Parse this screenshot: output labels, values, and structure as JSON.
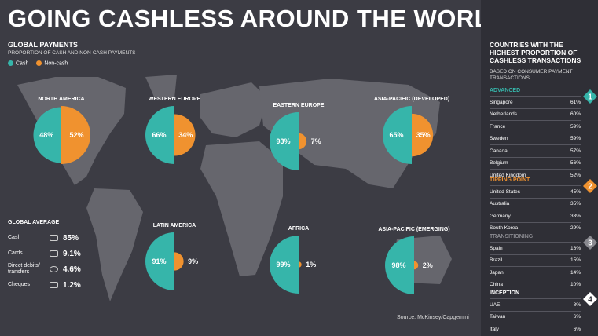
{
  "title": "GOING CASHLESS AROUND THE WORLD",
  "global_payments": {
    "title": "GLOBAL PAYMENTS",
    "subtitle": "PROPORTION OF CASH AND NON-CASH PAYMENTS",
    "legend_cash": "Cash",
    "legend_noncash": "Non-cash"
  },
  "colors": {
    "cash": "#36b5aa",
    "noncash": "#f0922f",
    "map": "#6b6b72",
    "bg": "#3c3c44",
    "panel": "#2f2f36"
  },
  "chart_data": {
    "type": "pie",
    "regions": [
      {
        "name": "NORTH AMERICA",
        "cash": 48,
        "noncash": 52,
        "cash_label": "48%",
        "noncash_label": "52%"
      },
      {
        "name": "WESTERN EUROPE",
        "cash": 66,
        "noncash": 34,
        "cash_label": "66%",
        "noncash_label": "34%"
      },
      {
        "name": "EASTERN EUROPE",
        "cash": 93,
        "noncash": 7,
        "cash_label": "93%",
        "noncash_label": "7%"
      },
      {
        "name": "ASIA-PACIFIC (DEVELOPED)",
        "cash": 65,
        "noncash": 35,
        "cash_label": "65%",
        "noncash_label": "35%"
      },
      {
        "name": "LATIN AMERICA",
        "cash": 91,
        "noncash": 9,
        "cash_label": "91%",
        "noncash_label": "9%"
      },
      {
        "name": "AFRICA",
        "cash": 99,
        "noncash": 1,
        "cash_label": "99%",
        "noncash_label": "1%"
      },
      {
        "name": "ASIA-PACIFIC (EMERGING)",
        "cash": 98,
        "noncash": 2,
        "cash_label": "98%",
        "noncash_label": "2%"
      }
    ]
  },
  "global_average": {
    "title": "GLOBAL AVERAGE",
    "items": [
      {
        "label": "Cash",
        "value": "85%"
      },
      {
        "label": "Cards",
        "value": "9.1%"
      },
      {
        "label": "Direct debits/ transfers",
        "value": "4.6%"
      },
      {
        "label": "Cheques",
        "value": "1.2%"
      }
    ]
  },
  "source": "Source: McKinsey/Capgemini",
  "right_panel": {
    "title": "COUNTRIES WITH THE HIGHEST PROPORTION OF CASHLESS TRANSACTIONS",
    "subtitle": "BASED ON CONSUMER PAYMENT TRANSACTIONS",
    "groups": [
      {
        "name": "ADVANCED",
        "badge": "1",
        "color": "#36b5aa",
        "rows": [
          {
            "country": "Singapore",
            "value": "61%"
          },
          {
            "country": "Netherlands",
            "value": "60%"
          },
          {
            "country": "France",
            "value": "59%"
          },
          {
            "country": "Sweden",
            "value": "59%"
          },
          {
            "country": "Canada",
            "value": "57%"
          },
          {
            "country": "Belgium",
            "value": "56%"
          },
          {
            "country": "United Kingdom",
            "value": "52%"
          }
        ]
      },
      {
        "name": "TIPPING POINT",
        "badge": "2",
        "color": "#f0922f",
        "rows": [
          {
            "country": "United States",
            "value": "45%"
          },
          {
            "country": "Australia",
            "value": "35%"
          },
          {
            "country": "Germany",
            "value": "33%"
          },
          {
            "country": "South Korea",
            "value": "29%"
          }
        ]
      },
      {
        "name": "TRANSITIONING",
        "badge": "3",
        "color": "#8a8a90",
        "rows": [
          {
            "country": "Spain",
            "value": "16%"
          },
          {
            "country": "Brazil",
            "value": "15%"
          },
          {
            "country": "Japan",
            "value": "14%"
          },
          {
            "country": "China",
            "value": "10%"
          }
        ]
      },
      {
        "name": "INCEPTION",
        "badge": "4",
        "color": "#ffffff",
        "rows": [
          {
            "country": "UAE",
            "value": "8%"
          },
          {
            "country": "Taiwan",
            "value": "6%"
          },
          {
            "country": "Italy",
            "value": "6%"
          }
        ]
      }
    ]
  }
}
